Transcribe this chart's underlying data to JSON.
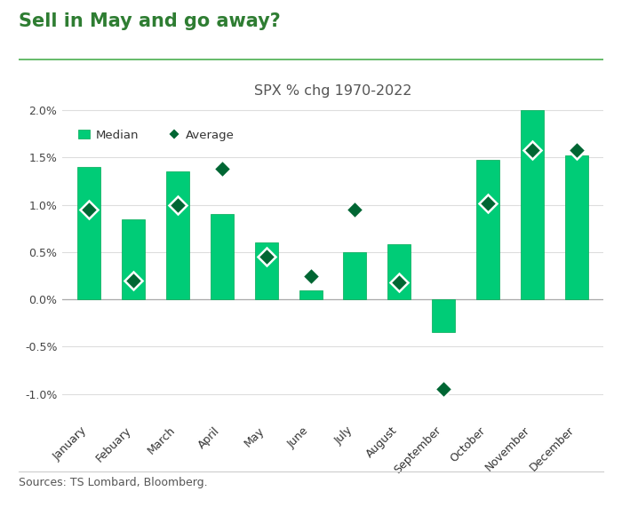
{
  "title": "Sell in May and go away?",
  "subtitle": "SPX % chg 1970-2022",
  "source": "Sources: TS Lombard, Bloomberg.",
  "months": [
    "January",
    "Febuary",
    "March",
    "April",
    "May",
    "June",
    "July",
    "August",
    "September",
    "October",
    "November",
    "December"
  ],
  "median": [
    1.4,
    0.85,
    1.35,
    0.9,
    0.6,
    0.1,
    0.5,
    0.58,
    -0.35,
    1.48,
    2.0,
    1.52
  ],
  "average": [
    0.95,
    0.2,
    1.0,
    1.38,
    0.45,
    0.25,
    0.95,
    0.18,
    -0.95,
    1.02,
    1.58,
    1.58
  ],
  "bar_color": "#00CC77",
  "bar_edge_color": "#00AA55",
  "diamond_face_color": "#006633",
  "diamond_edge_color": "#FFFFFF",
  "title_color": "#2E7D32",
  "title_line_color": "#4CAF50",
  "subtitle_color": "#555555",
  "source_color": "#555555",
  "background_color": "#FFFFFF",
  "grid_color": "#DDDDDD",
  "zeroline_color": "#AAAAAA",
  "ylim": [
    -1.3,
    2.35
  ],
  "yticks": [
    -1.0,
    -0.5,
    0.0,
    0.5,
    1.0,
    1.5,
    2.0
  ]
}
